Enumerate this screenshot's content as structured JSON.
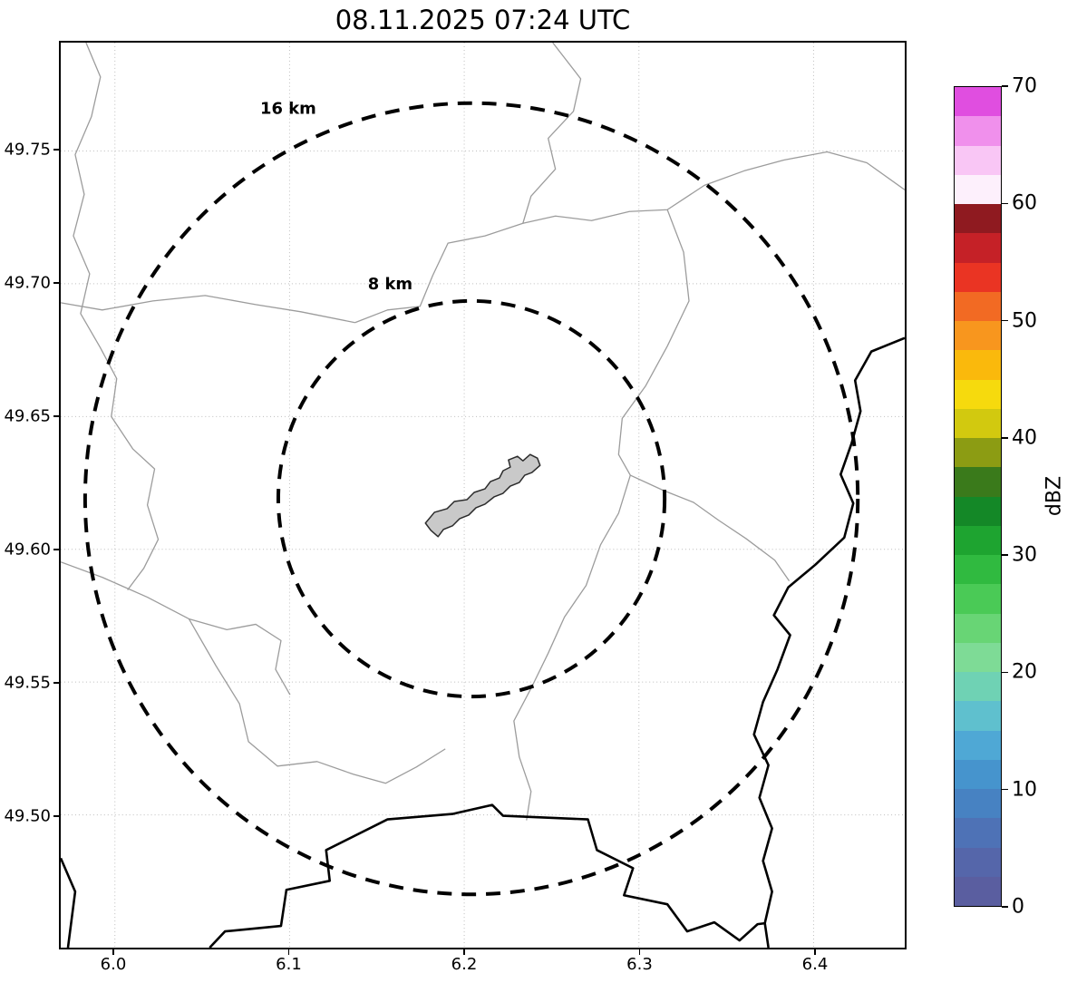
{
  "title": "08.11.2025 07:24 UTC",
  "map": {
    "x_axis_ticks": [
      "6.0",
      "6.1",
      "6.2",
      "6.3",
      "6.4"
    ],
    "y_axis_ticks": [
      "49.75",
      "49.70",
      "49.65",
      "49.60",
      "49.55",
      "49.50"
    ],
    "range_rings": [
      {
        "label": "16 km"
      },
      {
        "label": "8 km"
      }
    ]
  },
  "colorbar": {
    "label": "dBZ",
    "tick_labels": [
      "70",
      "60",
      "50",
      "40",
      "30",
      "20",
      "10",
      "0"
    ],
    "value_min": 0,
    "value_max": 70,
    "colors_bottom_to_top": [
      "#5a5ea0",
      "#5566aa",
      "#4e72b6",
      "#4782c2",
      "#4694cd",
      "#4fa8d5",
      "#5fc0ce",
      "#6fd2b4",
      "#7edb96",
      "#68d575",
      "#4aca56",
      "#30ba40",
      "#1ea430",
      "#148827",
      "#3a7a1b",
      "#8c9c13",
      "#d2c90f",
      "#f6da0d",
      "#fab90c",
      "#f8961e",
      "#f26a23",
      "#ea3423",
      "#c52127",
      "#8f1a20",
      "#fdf0fc",
      "#f9c6f5",
      "#f090ec",
      "#e04ee0"
    ]
  },
  "chart_data": {
    "type": "map",
    "title": "08.11.2025 07:24 UTC",
    "x_axis": {
      "ticks": [
        6.0,
        6.1,
        6.2,
        6.3,
        6.4
      ],
      "range_est": [
        5.97,
        6.45
      ]
    },
    "y_axis": {
      "ticks": [
        49.5,
        49.55,
        49.6,
        49.65,
        49.7,
        49.75
      ],
      "range_est": [
        49.45,
        49.79
      ]
    },
    "range_rings_km": [
      8,
      16
    ],
    "ring_center_est": {
      "lon": 6.2,
      "lat": 49.62
    },
    "colorbar": {
      "label": "dBZ",
      "min": 0,
      "max": 70,
      "tick_step": 10
    },
    "grid": true,
    "legend": false
  }
}
